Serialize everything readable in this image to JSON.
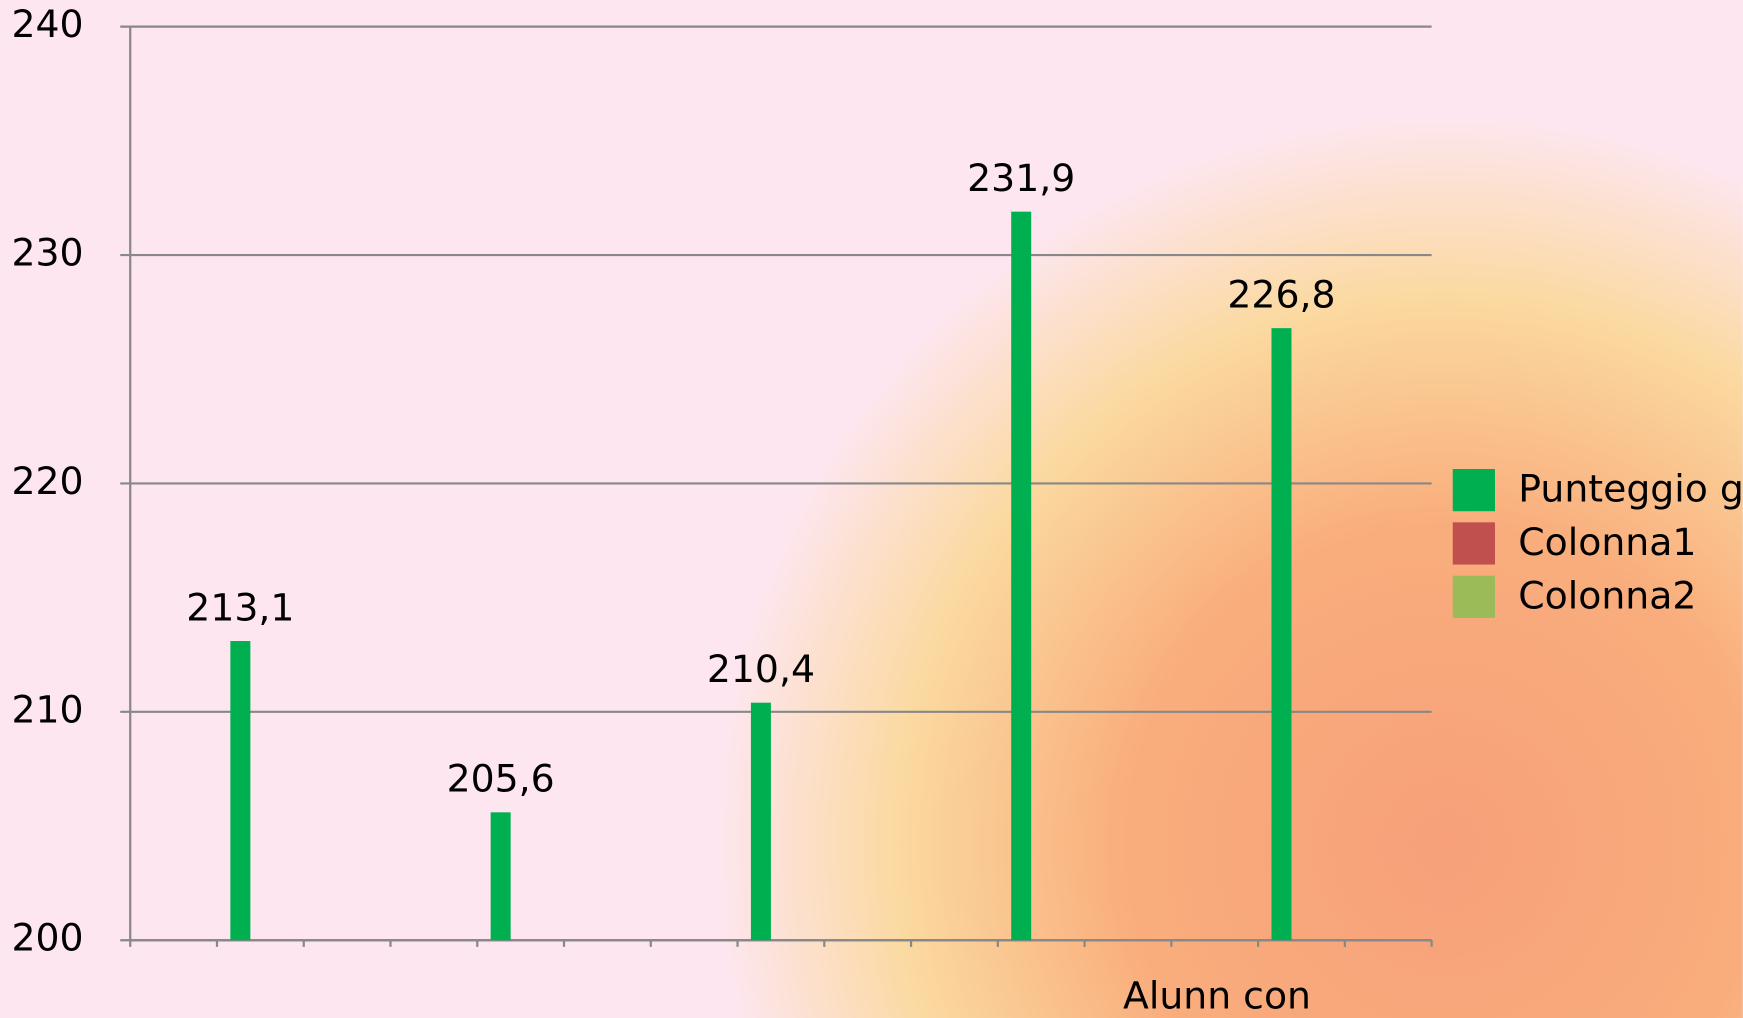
{
  "chart_data": {
    "type": "bar",
    "categories": [
      null,
      null,
      null,
      null,
      "Alunn con"
    ],
    "series": [
      {
        "name": "Punteggio g",
        "color": "#00b050",
        "values": [
          213.1,
          205.6,
          210.4,
          231.9,
          226.8
        ],
        "value_labels": [
          "213,1",
          "205,6",
          "210,4",
          "231,9",
          "226,8"
        ]
      },
      {
        "name": "Colonna1",
        "color": "#c0504d",
        "values": [
          null,
          null,
          null,
          null,
          null
        ]
      },
      {
        "name": "Colonna2",
        "color": "#9bbb59",
        "values": [
          null,
          null,
          null,
          null,
          null
        ]
      }
    ],
    "ylim": [
      200,
      240
    ],
    "yticks": [
      200,
      210,
      220,
      230,
      240
    ],
    "grid": true,
    "legend": "right"
  }
}
